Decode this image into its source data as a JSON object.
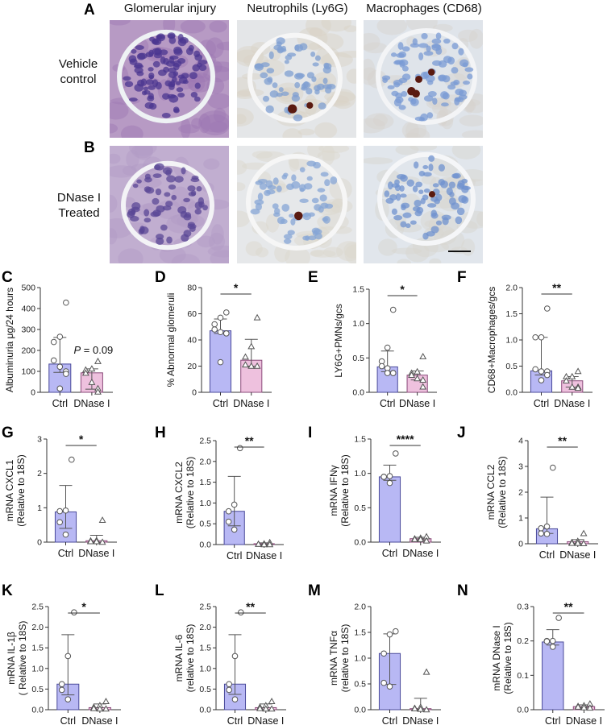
{
  "figure": {
    "columns": [
      "Glomerular injury",
      "Neutrophils (Ly6G)",
      "Macrophages (CD68)"
    ],
    "rows": [
      {
        "letter": "A",
        "label_line1": "Vehicle",
        "label_line2": "control"
      },
      {
        "letter": "B",
        "label_line1": "DNase I",
        "label_line2": "Treated"
      }
    ],
    "colors": {
      "ctrl_bar": "#b8b8f4",
      "ctrl_edge": "#4a4a9a",
      "dnase_bar": "#eec1de",
      "dnase_edge": "#8a4a7a",
      "axis": "#333333",
      "he_stain": "#8a5aa8",
      "ihc_background": "#dfe6ee",
      "nucleus_blue": "#5f86c4",
      "dab_brown": "#5a1a10"
    },
    "micrographs": [
      {
        "name": "vehicle-glomerular-injury",
        "stain": "PAS",
        "row": 0,
        "col": 0
      },
      {
        "name": "vehicle-neutrophils",
        "stain": "Ly6G",
        "row": 0,
        "col": 1
      },
      {
        "name": "vehicle-macrophages",
        "stain": "CD68",
        "row": 0,
        "col": 2
      },
      {
        "name": "dnase-glomerular-injury",
        "stain": "PAS",
        "row": 1,
        "col": 0
      },
      {
        "name": "dnase-neutrophils",
        "stain": "Ly6G",
        "row": 1,
        "col": 1
      },
      {
        "name": "dnase-macrophages",
        "stain": "CD68",
        "row": 1,
        "col": 2,
        "scale_bar": true
      }
    ]
  },
  "chart_data": [
    {
      "panel": "C",
      "type": "bar",
      "categories": [
        "Ctrl",
        "DNase I"
      ],
      "ylabel": "Albuminuria μg/24 hours",
      "ylabel2": "",
      "ylim": [
        0,
        500
      ],
      "yticks": [
        0,
        100,
        200,
        300,
        400,
        500
      ],
      "ytick_labels": [
        "0",
        "100",
        "200",
        "300",
        "400",
        "500"
      ],
      "values": [
        135,
        93
      ],
      "error_low": [
        95,
        15
      ],
      "error_high": [
        262,
        112
      ],
      "points": [
        [
          428,
          265,
          240,
          152,
          122,
          100,
          88,
          18
        ],
        [
          148,
          112,
          107,
          92,
          48,
          18,
          2
        ]
      ],
      "annotation": "P = 0.09",
      "significance": ""
    },
    {
      "panel": "D",
      "type": "bar",
      "categories": [
        "Ctrl",
        "DNase I"
      ],
      "ylabel": "% Abnormal glomeruli",
      "ylabel2": "",
      "ylim": [
        0,
        80
      ],
      "yticks": [
        0,
        20,
        40,
        60,
        80
      ],
      "ytick_labels": [
        "0",
        "20",
        "40",
        "60",
        "80"
      ],
      "values": [
        47,
        24.5
      ],
      "error_low": [
        45,
        20
      ],
      "error_high": [
        56,
        40.5
      ],
      "points": [
        [
          61,
          57,
          52,
          48,
          46,
          45,
          45,
          23
        ],
        [
          57,
          35,
          27,
          21,
          20,
          20
        ]
      ],
      "annotation": "",
      "significance": "*"
    },
    {
      "panel": "E",
      "type": "bar",
      "categories": [
        "Ctrl",
        "DNase I"
      ],
      "ylabel": "LY6G+PMNs/gcs",
      "ylabel2": "",
      "ylim": [
        0,
        1.5
      ],
      "yticks": [
        0,
        0.5,
        1.0,
        1.5
      ],
      "ytick_labels": [
        "0.0",
        "0.5",
        "1.0",
        "1.5"
      ],
      "values": [
        0.37,
        0.25
      ],
      "error_low": [
        0.3,
        0.18
      ],
      "error_high": [
        0.6,
        0.31
      ],
      "points": [
        [
          1.2,
          0.65,
          0.45,
          0.38,
          0.35,
          0.28,
          0.28,
          0.28
        ],
        [
          0.52,
          0.3,
          0.28,
          0.25,
          0.2,
          0.18,
          0.08
        ]
      ],
      "annotation": "",
      "significance": "*"
    },
    {
      "panel": "F",
      "type": "bar",
      "categories": [
        "Ctrl",
        "DNase I"
      ],
      "ylabel": "CD68+Macrophages/gcs",
      "ylabel2": "",
      "ylim": [
        0,
        2.0
      ],
      "yticks": [
        0,
        0.5,
        1.0,
        1.5,
        2.0
      ],
      "ytick_labels": [
        "0.0",
        "0.5",
        "1.0",
        "1.5",
        "2.0"
      ],
      "values": [
        0.41,
        0.22
      ],
      "error_low": [
        0.33,
        0.1
      ],
      "error_high": [
        1.05,
        0.3
      ],
      "points": [
        [
          1.6,
          1.05,
          1.05,
          0.44,
          0.4,
          0.4,
          0.33,
          0.23
        ],
        [
          0.4,
          0.3,
          0.3,
          0.22,
          0.1,
          0.1,
          0.08
        ]
      ],
      "annotation": "",
      "significance": "**"
    },
    {
      "panel": "G",
      "type": "bar",
      "categories": [
        "Ctrl",
        "DNase I"
      ],
      "ylabel": "mRNA CXCL1",
      "ylabel2": "(Relative to 18S)",
      "ylim": [
        0,
        3
      ],
      "yticks": [
        0,
        1,
        2,
        3
      ],
      "ytick_labels": [
        "0",
        "1",
        "2",
        "3"
      ],
      "values": [
        0.88,
        0.04
      ],
      "error_low": [
        0.4,
        0.0
      ],
      "error_high": [
        1.65,
        0.2
      ],
      "points": [
        [
          2.4,
          0.92,
          0.9,
          0.58,
          0.22
        ],
        [
          0.64,
          0.05,
          0.04,
          0.02,
          0.02,
          0.0
        ]
      ],
      "annotation": "",
      "significance": "*"
    },
    {
      "panel": "H",
      "type": "bar",
      "categories": [
        "Ctrl",
        "DNase I"
      ],
      "ylabel": "mRNA CXCL2",
      "ylabel2": "(Relative to 18S)",
      "ylim": [
        0,
        2.5
      ],
      "yticks": [
        0,
        0.5,
        1.0,
        1.5,
        2.0,
        2.5
      ],
      "ytick_labels": [
        "0.0",
        "0.5",
        "1.0",
        "1.5",
        "2.0",
        "2.5"
      ],
      "values": [
        0.8,
        0.02
      ],
      "error_low": [
        0.45,
        0.0
      ],
      "error_high": [
        1.64,
        0.04
      ],
      "points": [
        [
          2.32,
          0.96,
          0.8,
          0.55,
          0.36
        ],
        [
          0.05,
          0.02,
          0.01,
          0.01,
          0.0,
          0.0
        ]
      ],
      "annotation": "",
      "significance": "**"
    },
    {
      "panel": "I",
      "type": "bar",
      "categories": [
        "Ctrl",
        "DNase I"
      ],
      "ylabel": "mRNA IFNγ",
      "ylabel2": "(Relative to 18S)",
      "ylim": [
        0,
        1.5
      ],
      "yticks": [
        0,
        0.5,
        1.0,
        1.5
      ],
      "ytick_labels": [
        "0.0",
        "0.5",
        "1.0",
        "1.5"
      ],
      "values": [
        0.95,
        0.05
      ],
      "error_low": [
        0.9,
        0.03
      ],
      "error_high": [
        1.12,
        0.07
      ],
      "points": [
        [
          1.29,
          0.96,
          0.95,
          0.95,
          0.86
        ],
        [
          0.08,
          0.06,
          0.05,
          0.04,
          0.04,
          0.02
        ]
      ],
      "annotation": "",
      "significance": "****"
    },
    {
      "panel": "J",
      "type": "bar",
      "categories": [
        "Ctrl",
        "DNase I"
      ],
      "ylabel": "mRNA CCL2",
      "ylabel2": "(Relative to 18S)",
      "ylim": [
        0,
        4
      ],
      "yticks": [
        0,
        1,
        2,
        3,
        4
      ],
      "ytick_labels": [
        "0",
        "1",
        "2",
        "3",
        "4"
      ],
      "values": [
        0.58,
        0.08
      ],
      "error_low": [
        0.4,
        0.0
      ],
      "error_high": [
        1.81,
        0.16
      ],
      "points": [
        [
          2.95,
          0.67,
          0.6,
          0.4,
          0.38
        ],
        [
          0.4,
          0.1,
          0.05,
          0.02,
          0.02,
          0.01
        ]
      ],
      "annotation": "",
      "significance": "**"
    },
    {
      "panel": "K",
      "type": "bar",
      "categories": [
        "Ctrl",
        "DNase I"
      ],
      "ylabel": "mRNA IL-1β",
      "ylabel2": "( Relative to 18S)",
      "ylim": [
        0,
        2.5
      ],
      "yticks": [
        0,
        0.5,
        1.0,
        1.5,
        2.0,
        2.5
      ],
      "ytick_labels": [
        "0.0",
        "0.5",
        "1.0",
        "1.5",
        "2.0",
        "2.5"
      ],
      "values": [
        0.62,
        0.05
      ],
      "error_low": [
        0.36,
        0.0
      ],
      "error_high": [
        1.82,
        0.14
      ],
      "points": [
        [
          2.36,
          1.3,
          0.62,
          0.48,
          0.25
        ],
        [
          0.2,
          0.1,
          0.06,
          0.03,
          0.02,
          0.02
        ]
      ],
      "annotation": "",
      "significance": "*"
    },
    {
      "panel": "L",
      "type": "bar",
      "categories": [
        "Ctrl",
        "DNase I"
      ],
      "ylabel": "mRNA IL-6",
      "ylabel2": "(relative to 18S)",
      "ylim": [
        0,
        2.5
      ],
      "yticks": [
        0,
        0.5,
        1.0,
        1.5,
        2.0,
        2.5
      ],
      "ytick_labels": [
        "0.0",
        "0.5",
        "1.0",
        "1.5",
        "2.0",
        "2.5"
      ],
      "values": [
        0.62,
        0.05
      ],
      "error_low": [
        0.37,
        0.0
      ],
      "error_high": [
        1.82,
        0.14
      ],
      "points": [
        [
          2.36,
          1.3,
          0.62,
          0.48,
          0.25
        ],
        [
          0.2,
          0.1,
          0.06,
          0.03,
          0.02,
          0.02
        ]
      ],
      "annotation": "",
      "significance": "**"
    },
    {
      "panel": "M",
      "type": "bar",
      "categories": [
        "Ctrl",
        "DNase I"
      ],
      "ylabel": "mRNA TNFα",
      "ylabel2": "(relative to 18S)",
      "ylim": [
        0,
        2.0
      ],
      "yticks": [
        0,
        0.5,
        1.0,
        1.5,
        2.0
      ],
      "ytick_labels": [
        "0.0",
        "0.5",
        "1.0",
        "1.5",
        "2.0"
      ],
      "values": [
        1.09,
        0.02
      ],
      "error_low": [
        0.49,
        0.0
      ],
      "error_high": [
        1.47,
        0.22
      ],
      "points": [
        [
          1.52,
          1.46,
          1.09,
          0.52,
          0.45
        ],
        [
          0.73,
          0.05,
          0.03,
          0.02,
          0.01,
          0.0
        ]
      ],
      "annotation": "",
      "significance": ""
    },
    {
      "panel": "N",
      "type": "bar",
      "categories": [
        "Ctrl",
        "DNase I"
      ],
      "ylabel": "mRNA DNase I",
      "ylabel2": "(Relative to 18S)",
      "ylim": [
        0,
        0.3
      ],
      "yticks": [
        0,
        0.1,
        0.2,
        0.3
      ],
      "ytick_labels": [
        "0.0",
        "0.1",
        "0.2",
        "0.3"
      ],
      "values": [
        0.197,
        0.009
      ],
      "error_low": [
        0.188,
        0.005
      ],
      "error_high": [
        0.233,
        0.014
      ],
      "points": [
        [
          0.267,
          0.2,
          0.2,
          0.199,
          0.183
        ],
        [
          0.017,
          0.012,
          0.01,
          0.008,
          0.006,
          0.005
        ]
      ],
      "annotation": "",
      "significance": "**"
    }
  ]
}
